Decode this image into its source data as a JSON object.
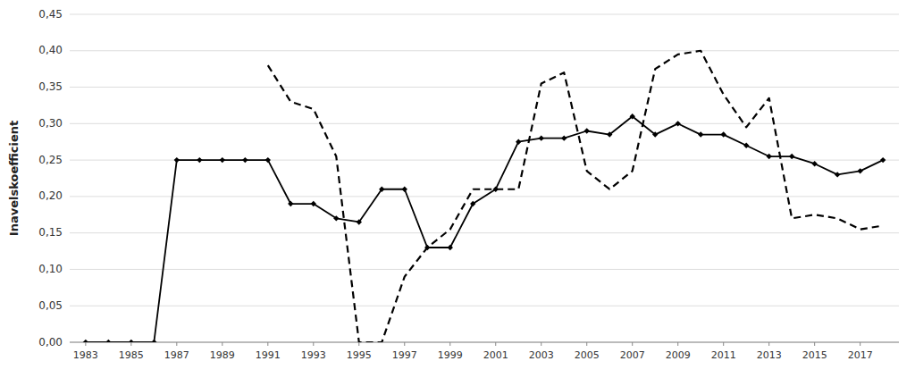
{
  "chart_data": {
    "type": "line",
    "y_label": "Inavelskoefficient",
    "x": [
      1983,
      1984,
      1985,
      1986,
      1987,
      1988,
      1989,
      1990,
      1991,
      1992,
      1993,
      1994,
      1995,
      1996,
      1997,
      1998,
      1999,
      2000,
      2001,
      2002,
      2003,
      2004,
      2005,
      2006,
      2007,
      2008,
      2009,
      2010,
      2011,
      2012,
      2013,
      2014,
      2015,
      2016,
      2017,
      2018
    ],
    "series": [
      {
        "color": "#000000",
        "line_style": "solid",
        "marker": "diamond",
        "values": [
          0.0,
          0.0,
          0.0,
          0.0,
          0.25,
          0.25,
          0.25,
          0.25,
          0.25,
          0.19,
          0.19,
          0.17,
          0.165,
          0.21,
          0.21,
          0.13,
          0.13,
          0.19,
          0.21,
          0.275,
          0.28,
          0.28,
          0.29,
          0.285,
          0.31,
          0.285,
          0.3,
          0.285,
          0.285,
          0.27,
          0.255,
          0.255,
          0.245,
          0.23,
          0.235,
          0.25
        ]
      },
      {
        "color": "#000000",
        "line_style": "dashed",
        "marker": "none",
        "values": [
          null,
          null,
          null,
          null,
          null,
          null,
          null,
          null,
          0.38,
          0.33,
          0.32,
          0.255,
          0.0,
          0.0,
          0.09,
          0.13,
          0.155,
          0.21,
          0.21,
          0.21,
          0.355,
          0.37,
          0.235,
          0.21,
          0.235,
          0.375,
          0.395,
          0.4,
          0.34,
          0.295,
          0.335,
          0.17,
          0.175,
          0.17,
          0.155,
          0.16
        ]
      }
    ],
    "xlim": [
      1982.3,
      2018.7
    ],
    "xticks": [
      1983,
      1985,
      1987,
      1989,
      1991,
      1993,
      1995,
      1997,
      1999,
      2001,
      2003,
      2005,
      2007,
      2009,
      2011,
      2013,
      2015,
      2017
    ],
    "ylim": [
      0.0,
      0.45
    ],
    "yticks": [
      {
        "value": 0.0,
        "label": "0,00"
      },
      {
        "value": 0.05,
        "label": "0,05"
      },
      {
        "value": 0.1,
        "label": "0,10"
      },
      {
        "value": 0.15,
        "label": "0,15"
      },
      {
        "value": 0.2,
        "label": "0,20"
      },
      {
        "value": 0.25,
        "label": "0,25"
      },
      {
        "value": 0.3,
        "label": "0,30"
      },
      {
        "value": 0.35,
        "label": "0,35"
      },
      {
        "value": 0.4,
        "label": "0,40"
      },
      {
        "value": 0.45,
        "label": "0,45"
      }
    ],
    "grid": true
  }
}
